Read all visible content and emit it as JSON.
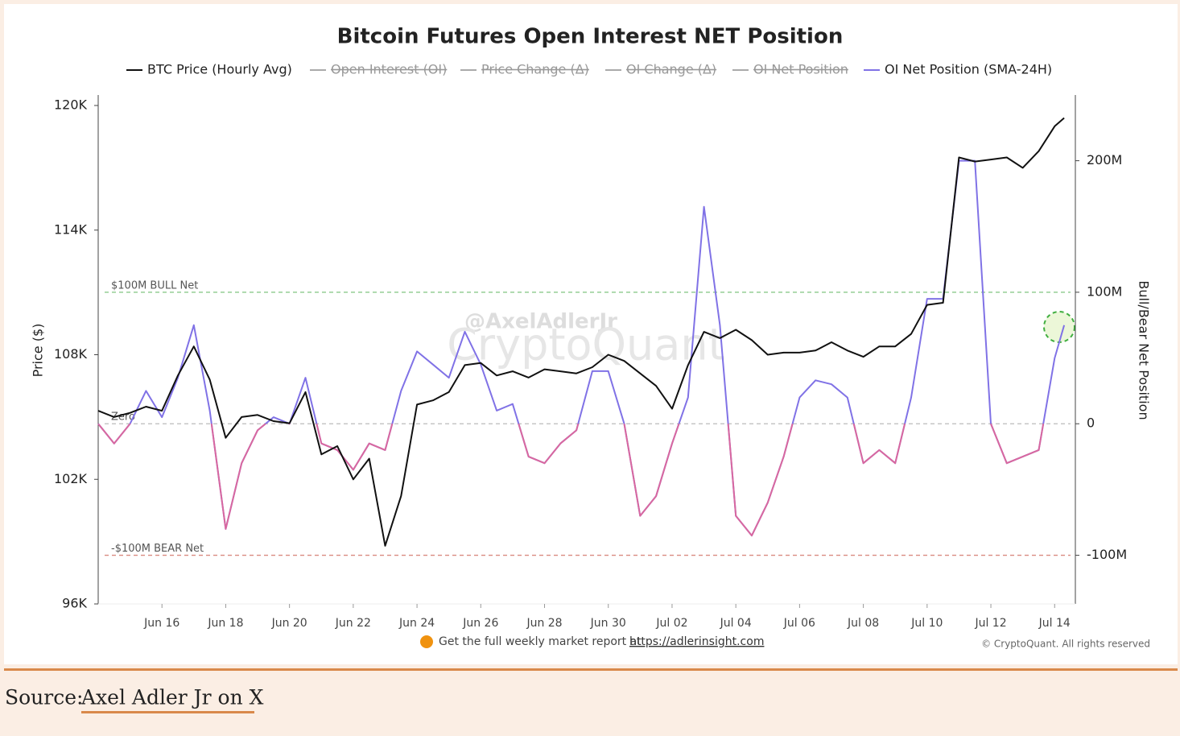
{
  "chart_data": {
    "type": "line",
    "title": "Bitcoin Futures Open Interest NET Position",
    "y_label": "Price ($)",
    "y2_label": "Bull/Bear Net Position",
    "xlim": [
      0,
      30.65
    ],
    "xticks": [
      {
        "value": 2,
        "label": "Jun 16"
      },
      {
        "value": 4,
        "label": "Jun 18"
      },
      {
        "value": 6,
        "label": "Jun 20"
      },
      {
        "value": 8,
        "label": "Jun 22"
      },
      {
        "value": 10,
        "label": "Jun 24"
      },
      {
        "value": 12,
        "label": "Jun 26"
      },
      {
        "value": 14,
        "label": "Jun 28"
      },
      {
        "value": 16,
        "label": "Jun 30"
      },
      {
        "value": 18,
        "label": "Jul 02"
      },
      {
        "value": 20,
        "label": "Jul 04"
      },
      {
        "value": 22,
        "label": "Jul 06"
      },
      {
        "value": 24,
        "label": "Jul 08"
      },
      {
        "value": 26,
        "label": "Jul 10"
      },
      {
        "value": 28,
        "label": "Jul 12"
      },
      {
        "value": 30,
        "label": "Jul 14"
      }
    ],
    "ylim": [
      96000,
      120000
    ],
    "yticks": [
      {
        "value": 96000,
        "label": "96K"
      },
      {
        "value": 102000,
        "label": "102K"
      },
      {
        "value": 108000,
        "label": "108K"
      },
      {
        "value": 114000,
        "label": "114K"
      },
      {
        "value": 120000,
        "label": "120K"
      }
    ],
    "y2lim": [
      -137,
      242
    ],
    "y2ticks": [
      {
        "value": -100,
        "label": "-100M"
      },
      0,
      {
        "value": 100,
        "label": "100M"
      },
      {
        "value": 200,
        "label": "200M"
      }
    ],
    "legend_hidden": [
      "Open Interest (OI)",
      "Price Change (Δ)",
      "OI Change (Δ)",
      "OI Net Position"
    ],
    "series": [
      {
        "name": "BTC Price (Hourly Avg)",
        "color": "#111111",
        "axis": "y",
        "x": [
          0,
          0.5,
          1,
          1.5,
          2,
          2.5,
          3,
          3.5,
          4,
          4.5,
          5,
          5.5,
          6,
          6.5,
          7,
          7.5,
          8,
          8.5,
          9,
          9.5,
          10,
          10.5,
          11,
          11.5,
          12,
          12.5,
          13,
          13.5,
          14,
          14.5,
          15,
          15.5,
          16,
          16.5,
          17,
          17.5,
          18,
          18.5,
          19,
          19.5,
          20,
          20.5,
          21,
          21.5,
          22,
          22.5,
          23,
          23.5,
          24,
          24.5,
          25,
          25.5,
          26,
          26.5,
          27,
          27.5,
          28,
          28.5,
          29,
          29.5,
          30,
          30.3
        ],
        "values": [
          105300,
          105000,
          105200,
          105500,
          105300,
          107000,
          108400,
          106800,
          104000,
          105000,
          105100,
          104800,
          104700,
          106200,
          103200,
          103600,
          102000,
          103000,
          98800,
          101200,
          105600,
          105800,
          106200,
          107500,
          107600,
          107000,
          107200,
          106900,
          107300,
          107200,
          107100,
          107400,
          108000,
          107700,
          107100,
          106500,
          105400,
          107500,
          109100,
          108800,
          109200,
          108700,
          108000,
          108100,
          108100,
          108200,
          108600,
          108200,
          107900,
          108400,
          108400,
          109000,
          110400,
          110500,
          117500,
          117300,
          117400,
          117500,
          117000,
          117800,
          119000,
          119400
        ]
      },
      {
        "name": "OI Net Position (SMA-24H)",
        "color": "#8072e6",
        "negative_color": "#d9689f",
        "axis": "y2",
        "x": [
          0,
          0.5,
          1,
          1.5,
          2,
          2.5,
          3,
          3.5,
          4,
          4.5,
          5,
          5.5,
          6,
          6.5,
          7,
          7.5,
          8,
          8.5,
          9,
          9.5,
          10,
          10.5,
          11,
          11.5,
          12,
          12.5,
          13,
          13.5,
          14,
          14.5,
          15,
          15.5,
          16,
          16.5,
          17,
          17.5,
          18,
          18.5,
          19,
          19.5,
          20,
          20.5,
          21,
          21.5,
          22,
          22.5,
          23,
          23.5,
          24,
          24.5,
          25,
          25.5,
          26,
          26.5,
          27,
          27.5,
          28,
          28.5,
          29,
          29.5,
          30,
          30.3
        ],
        "values": [
          0,
          -15,
          0,
          25,
          5,
          35,
          75,
          10,
          -80,
          -30,
          -5,
          5,
          0,
          35,
          -15,
          -20,
          -35,
          -15,
          -20,
          25,
          55,
          45,
          35,
          70,
          45,
          10,
          15,
          -25,
          -30,
          -15,
          -5,
          40,
          40,
          0,
          -70,
          -55,
          -15,
          20,
          165,
          75,
          -70,
          -85,
          -60,
          -25,
          20,
          33,
          30,
          20,
          -30,
          -20,
          -30,
          20,
          95,
          95,
          200,
          200,
          0,
          -30,
          -25,
          -20,
          50,
          75
        ]
      }
    ],
    "annotations": [
      {
        "text": "$100M BULL Net",
        "value": 100,
        "color": "#8cc98c"
      },
      {
        "text": "Zero",
        "value": 0,
        "color": "#bbbbbb"
      },
      {
        "text": "-$100M BEAR Net",
        "value": -100,
        "color": "#d98a80"
      }
    ],
    "watermark": [
      "@AxelAdlerJr",
      "CryptoQuant"
    ],
    "footer": {
      "text": "Get the full weekly market report at",
      "link": "https://adlerinsight.com",
      "copyright": "© CryptoQuant. All rights reserved"
    }
  },
  "source": {
    "label": "Source:",
    "link": "Axel Adler Jr on X"
  }
}
